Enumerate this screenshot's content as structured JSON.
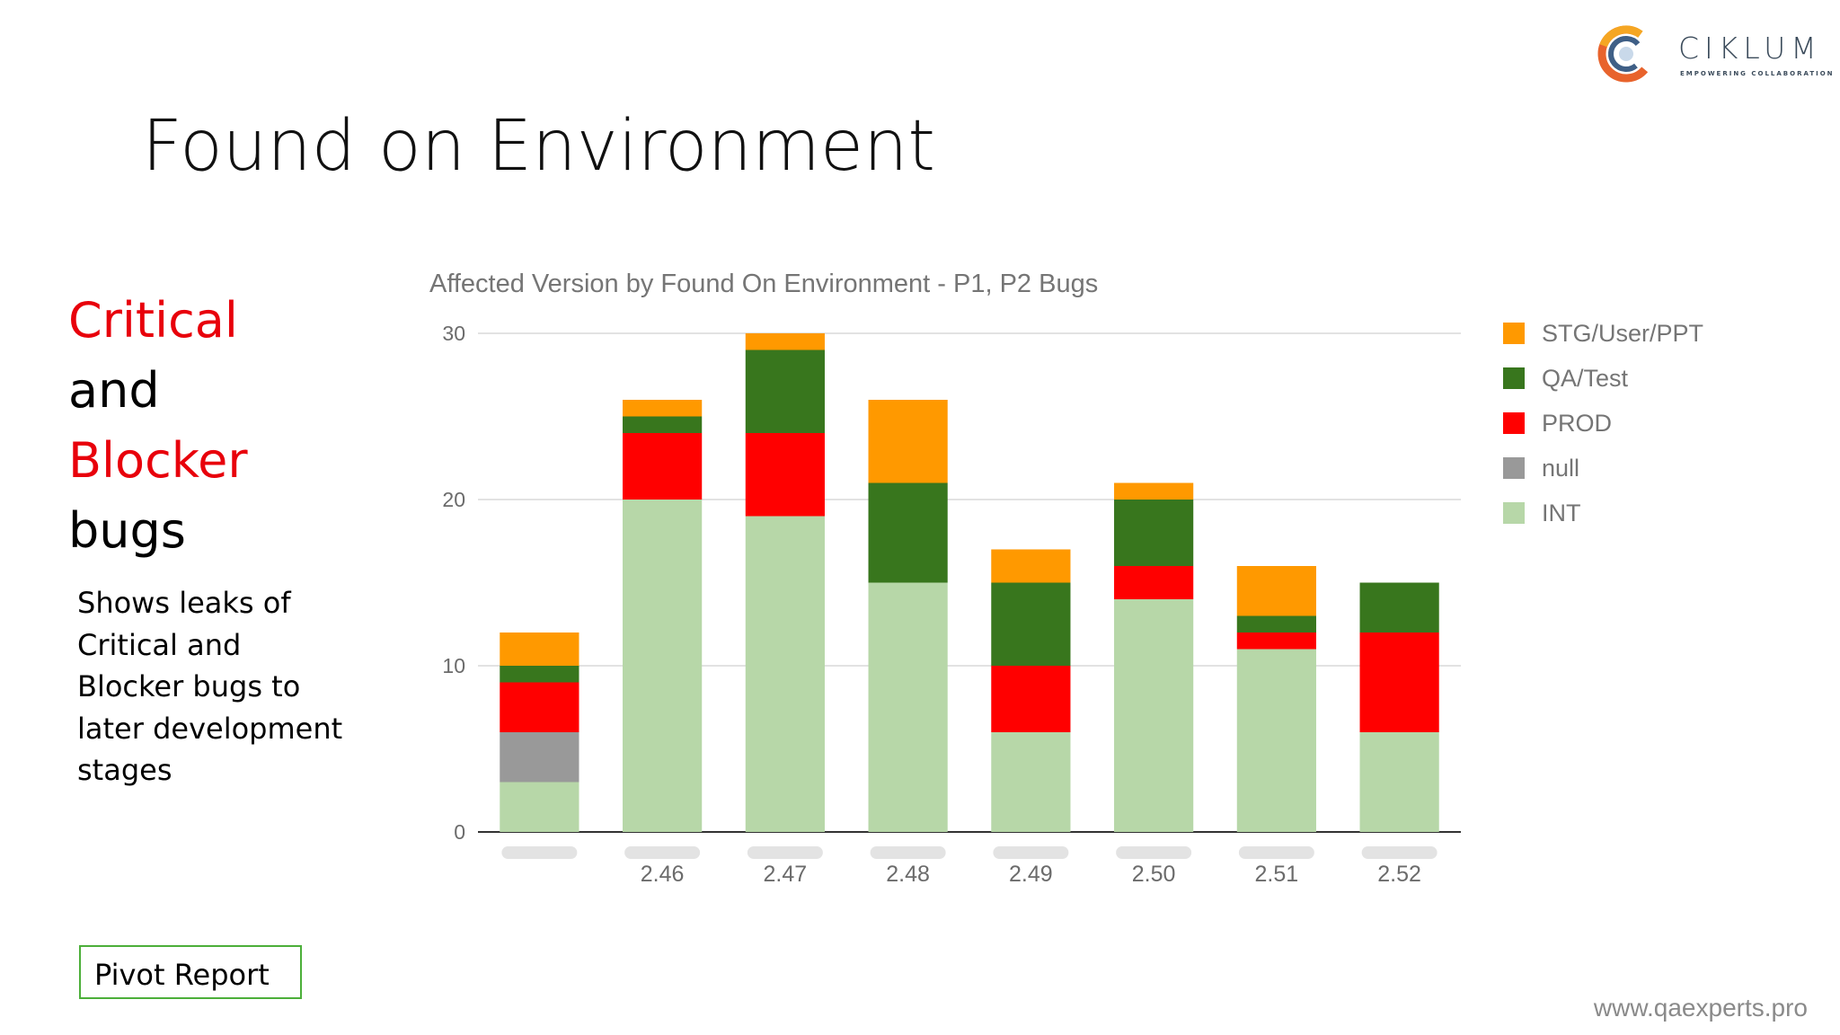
{
  "slide": {
    "title": "Found on Environment",
    "heading_lines": [
      {
        "text": "Critical",
        "color": "#e8000b"
      },
      {
        "text": "and",
        "color": "#000000"
      },
      {
        "text": "Blocker",
        "color": "#e8000b"
      },
      {
        "text": "bugs",
        "color": "#000000"
      }
    ],
    "description": "Shows leaks of Critical and Blocker bugs to later development stages",
    "pivot_label": "Pivot Report",
    "footer_url": "www.qaexperts.pro"
  },
  "logo": {
    "word": "CIKLUM",
    "tagline": "EMPOWERING COLLABORATION",
    "icon": "ciklum-logo-icon"
  },
  "chart_data": {
    "type": "bar",
    "stacked": true,
    "title": "Affected Version by Found On Environment - P1, P2 Bugs",
    "xlabel": "",
    "ylabel": "",
    "ylim": [
      0,
      30
    ],
    "yticks": [
      0,
      10,
      20,
      30
    ],
    "grid": true,
    "legend": "right",
    "categories": [
      "",
      "2.46",
      "2.47",
      "2.48",
      "2.49",
      "2.50",
      "2.51",
      "2.52"
    ],
    "series": [
      {
        "name": "INT",
        "color": "#b7d7a8",
        "values": [
          3,
          20,
          19,
          15,
          6,
          14,
          11,
          6
        ]
      },
      {
        "name": "null",
        "color": "#999999",
        "values": [
          3,
          0,
          0,
          0,
          0,
          0,
          0,
          0
        ]
      },
      {
        "name": "PROD",
        "color": "#ff0000",
        "values": [
          3,
          4,
          5,
          0,
          4,
          2,
          1,
          6
        ]
      },
      {
        "name": "QA/Test",
        "color": "#38761d",
        "values": [
          1,
          1,
          5,
          6,
          5,
          4,
          1,
          3
        ]
      },
      {
        "name": "STG/User/PPT",
        "color": "#ff9900",
        "values": [
          2,
          1,
          1,
          5,
          2,
          1,
          3,
          0
        ]
      }
    ],
    "legend_order": [
      "STG/User/PPT",
      "QA/Test",
      "PROD",
      "null",
      "INT"
    ]
  }
}
